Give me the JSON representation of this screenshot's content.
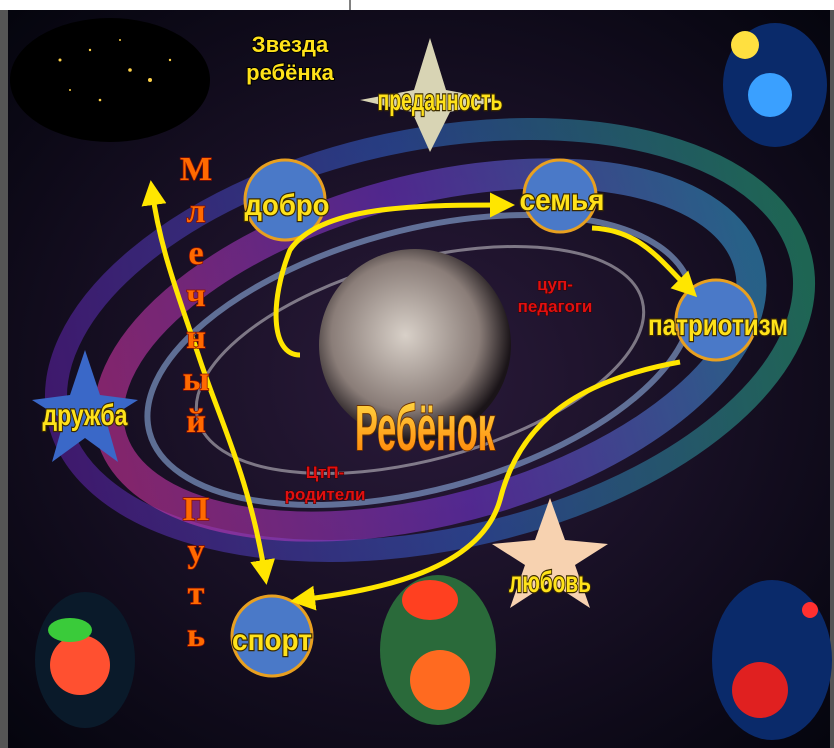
{
  "star_caption": {
    "lines": [
      "Звезда",
      "ребёнка"
    ]
  },
  "center": {
    "label": "Ребёнок"
  },
  "nodes": [
    {
      "label": "добро"
    },
    {
      "label": "семья"
    },
    {
      "label": "патриотизм"
    },
    {
      "label": "спорт"
    }
  ],
  "stars": [
    {
      "label": "преданность"
    },
    {
      "label": "дружба"
    },
    {
      "label": "любовь"
    }
  ],
  "notes": [
    {
      "lines": [
        "цуп-",
        "педагоги"
      ]
    },
    {
      "lines": [
        "ЦтП-",
        "родители"
      ]
    }
  ],
  "vertical_text": {
    "letters": [
      "М",
      "л",
      "е",
      "ч",
      "н",
      "ы",
      "й",
      "П",
      "у",
      "т",
      "ь"
    ]
  }
}
